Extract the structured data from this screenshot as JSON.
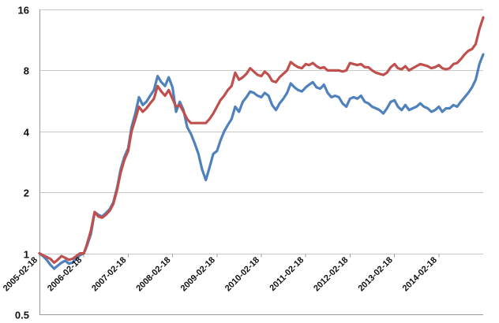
{
  "chart_data": {
    "type": "line",
    "title": "",
    "xlabel": "",
    "ylabel": "",
    "y_scale": "log2",
    "ylim": [
      0.5,
      16
    ],
    "y_ticks": [
      0.5,
      1,
      2,
      4,
      8,
      16
    ],
    "y_tick_labels": [
      "0.5",
      "1",
      "2",
      "4",
      "8",
      "16"
    ],
    "x_range": [
      "2005-02-18",
      "2015-02-18"
    ],
    "x_ticks": [
      "2005-02-18",
      "2006-02-18",
      "2007-02-18",
      "2008-02-18",
      "2009-02-18",
      "2010-02-18",
      "2011-02-18",
      "2012-02-18",
      "2013-02-18",
      "2014-02-18"
    ],
    "x_tick_label_rotation": -45,
    "grid": "horizontal",
    "legend": "none",
    "series": [
      {
        "color": "#4f81bd",
        "points": [
          [
            "2005-02-18",
            1.0
          ],
          [
            "2005-03-18",
            0.97
          ],
          [
            "2005-04-18",
            0.93
          ],
          [
            "2005-05-18",
            0.88
          ],
          [
            "2005-06-18",
            0.84
          ],
          [
            "2005-07-18",
            0.87
          ],
          [
            "2005-08-18",
            0.9
          ],
          [
            "2005-09-18",
            0.92
          ],
          [
            "2005-10-18",
            0.89
          ],
          [
            "2005-11-18",
            0.9
          ],
          [
            "2005-12-18",
            0.94
          ],
          [
            "2006-01-18",
            0.98
          ],
          [
            "2006-02-18",
            1.0
          ],
          [
            "2006-03-18",
            1.1
          ],
          [
            "2006-04-18",
            1.25
          ],
          [
            "2006-05-18",
            1.6
          ],
          [
            "2006-06-18",
            1.55
          ],
          [
            "2006-07-18",
            1.52
          ],
          [
            "2006-08-18",
            1.58
          ],
          [
            "2006-09-18",
            1.65
          ],
          [
            "2006-10-18",
            1.78
          ],
          [
            "2006-11-18",
            2.1
          ],
          [
            "2006-12-18",
            2.6
          ],
          [
            "2007-01-18",
            3.0
          ],
          [
            "2007-02-18",
            3.3
          ],
          [
            "2007-03-18",
            4.2
          ],
          [
            "2007-04-18",
            4.9
          ],
          [
            "2007-05-18",
            5.9
          ],
          [
            "2007-06-18",
            5.4
          ],
          [
            "2007-07-18",
            5.6
          ],
          [
            "2007-08-18",
            6.0
          ],
          [
            "2007-09-18",
            6.4
          ],
          [
            "2007-10-18",
            7.5
          ],
          [
            "2007-11-18",
            7.0
          ],
          [
            "2007-12-18",
            6.7
          ],
          [
            "2008-01-18",
            7.4
          ],
          [
            "2008-02-18",
            6.6
          ],
          [
            "2008-03-18",
            5.0
          ],
          [
            "2008-04-18",
            5.6
          ],
          [
            "2008-05-18",
            5.1
          ],
          [
            "2008-06-18",
            4.2
          ],
          [
            "2008-07-18",
            3.9
          ],
          [
            "2008-08-18",
            3.5
          ],
          [
            "2008-09-18",
            3.1
          ],
          [
            "2008-10-18",
            2.6
          ],
          [
            "2008-11-18",
            2.3
          ],
          [
            "2008-12-18",
            2.65
          ],
          [
            "2009-01-18",
            3.1
          ],
          [
            "2009-02-18",
            3.2
          ],
          [
            "2009-03-18",
            3.6
          ],
          [
            "2009-04-18",
            4.0
          ],
          [
            "2009-05-18",
            4.3
          ],
          [
            "2009-06-18",
            4.6
          ],
          [
            "2009-07-18",
            5.3
          ],
          [
            "2009-08-18",
            5.0
          ],
          [
            "2009-09-18",
            5.6
          ],
          [
            "2009-10-18",
            5.9
          ],
          [
            "2009-11-18",
            6.3
          ],
          [
            "2009-12-18",
            6.2
          ],
          [
            "2010-01-18",
            6.0
          ],
          [
            "2010-02-18",
            5.9
          ],
          [
            "2010-03-18",
            6.2
          ],
          [
            "2010-04-18",
            6.0
          ],
          [
            "2010-05-18",
            5.4
          ],
          [
            "2010-06-18",
            5.1
          ],
          [
            "2010-07-18",
            5.5
          ],
          [
            "2010-08-18",
            5.8
          ],
          [
            "2010-09-18",
            6.2
          ],
          [
            "2010-10-18",
            6.9
          ],
          [
            "2010-11-18",
            6.6
          ],
          [
            "2010-12-18",
            6.4
          ],
          [
            "2011-01-18",
            6.3
          ],
          [
            "2011-02-18",
            6.6
          ],
          [
            "2011-03-18",
            6.8
          ],
          [
            "2011-04-18",
            7.0
          ],
          [
            "2011-05-18",
            6.6
          ],
          [
            "2011-06-18",
            6.5
          ],
          [
            "2011-07-18",
            6.8
          ],
          [
            "2011-08-18",
            6.2
          ],
          [
            "2011-09-18",
            5.9
          ],
          [
            "2011-10-18",
            6.0
          ],
          [
            "2011-11-18",
            5.9
          ],
          [
            "2011-12-18",
            5.5
          ],
          [
            "2012-01-18",
            5.3
          ],
          [
            "2012-02-18",
            5.8
          ],
          [
            "2012-03-18",
            5.9
          ],
          [
            "2012-04-18",
            5.8
          ],
          [
            "2012-05-18",
            6.0
          ],
          [
            "2012-06-18",
            5.6
          ],
          [
            "2012-07-18",
            5.5
          ],
          [
            "2012-08-18",
            5.3
          ],
          [
            "2012-09-18",
            5.2
          ],
          [
            "2012-10-18",
            5.1
          ],
          [
            "2012-11-18",
            4.9
          ],
          [
            "2012-12-18",
            5.2
          ],
          [
            "2013-01-18",
            5.6
          ],
          [
            "2013-02-18",
            5.7
          ],
          [
            "2013-03-18",
            5.3
          ],
          [
            "2013-04-18",
            5.1
          ],
          [
            "2013-05-18",
            5.4
          ],
          [
            "2013-06-18",
            5.1
          ],
          [
            "2013-07-18",
            5.2
          ],
          [
            "2013-08-18",
            5.3
          ],
          [
            "2013-09-18",
            5.5
          ],
          [
            "2013-10-18",
            5.3
          ],
          [
            "2013-11-18",
            5.2
          ],
          [
            "2013-12-18",
            5.0
          ],
          [
            "2014-01-18",
            5.1
          ],
          [
            "2014-02-18",
            5.3
          ],
          [
            "2014-03-18",
            5.0
          ],
          [
            "2014-04-18",
            5.2
          ],
          [
            "2014-05-18",
            5.2
          ],
          [
            "2014-06-18",
            5.4
          ],
          [
            "2014-07-18",
            5.3
          ],
          [
            "2014-08-18",
            5.6
          ],
          [
            "2014-09-18",
            5.9
          ],
          [
            "2014-10-18",
            6.2
          ],
          [
            "2014-11-18",
            6.6
          ],
          [
            "2014-12-18",
            7.2
          ],
          [
            "2015-01-18",
            8.6
          ],
          [
            "2015-02-18",
            9.6
          ]
        ]
      },
      {
        "color": "#c0504d",
        "points": [
          [
            "2005-02-18",
            1.0
          ],
          [
            "2005-03-18",
            0.98
          ],
          [
            "2005-04-18",
            0.96
          ],
          [
            "2005-05-18",
            0.94
          ],
          [
            "2005-06-18",
            0.9
          ],
          [
            "2005-07-18",
            0.93
          ],
          [
            "2005-08-18",
            0.97
          ],
          [
            "2005-09-18",
            0.95
          ],
          [
            "2005-10-18",
            0.93
          ],
          [
            "2005-11-18",
            0.94
          ],
          [
            "2005-12-18",
            0.97
          ],
          [
            "2006-01-18",
            1.0
          ],
          [
            "2006-02-18",
            1.0
          ],
          [
            "2006-03-18",
            1.12
          ],
          [
            "2006-04-18",
            1.3
          ],
          [
            "2006-05-18",
            1.6
          ],
          [
            "2006-06-18",
            1.52
          ],
          [
            "2006-07-18",
            1.5
          ],
          [
            "2006-08-18",
            1.55
          ],
          [
            "2006-09-18",
            1.62
          ],
          [
            "2006-10-18",
            1.75
          ],
          [
            "2006-11-18",
            2.05
          ],
          [
            "2006-12-18",
            2.5
          ],
          [
            "2007-01-18",
            2.9
          ],
          [
            "2007-02-18",
            3.2
          ],
          [
            "2007-03-18",
            4.0
          ],
          [
            "2007-04-18",
            4.6
          ],
          [
            "2007-05-18",
            5.3
          ],
          [
            "2007-06-18",
            5.0
          ],
          [
            "2007-07-18",
            5.2
          ],
          [
            "2007-08-18",
            5.5
          ],
          [
            "2007-09-18",
            5.8
          ],
          [
            "2007-10-18",
            6.7
          ],
          [
            "2007-11-18",
            6.3
          ],
          [
            "2007-12-18",
            6.0
          ],
          [
            "2008-01-18",
            6.4
          ],
          [
            "2008-02-18",
            5.8
          ],
          [
            "2008-03-18",
            5.3
          ],
          [
            "2008-04-18",
            5.4
          ],
          [
            "2008-05-18",
            5.0
          ],
          [
            "2008-06-18",
            4.6
          ],
          [
            "2008-07-18",
            4.4
          ],
          [
            "2008-08-18",
            4.4
          ],
          [
            "2008-09-18",
            4.4
          ],
          [
            "2008-10-18",
            4.4
          ],
          [
            "2008-11-18",
            4.4
          ],
          [
            "2008-12-18",
            4.6
          ],
          [
            "2009-01-18",
            4.9
          ],
          [
            "2009-02-18",
            5.3
          ],
          [
            "2009-03-18",
            5.7
          ],
          [
            "2009-04-18",
            6.0
          ],
          [
            "2009-05-18",
            6.4
          ],
          [
            "2009-06-18",
            6.7
          ],
          [
            "2009-07-18",
            7.8
          ],
          [
            "2009-08-18",
            7.2
          ],
          [
            "2009-09-18",
            7.4
          ],
          [
            "2009-10-18",
            7.7
          ],
          [
            "2009-11-18",
            8.2
          ],
          [
            "2009-12-18",
            7.9
          ],
          [
            "2010-01-18",
            7.6
          ],
          [
            "2010-02-18",
            7.5
          ],
          [
            "2010-03-18",
            7.9
          ],
          [
            "2010-04-18",
            7.6
          ],
          [
            "2010-05-18",
            7.1
          ],
          [
            "2010-06-18",
            7.0
          ],
          [
            "2010-07-18",
            7.4
          ],
          [
            "2010-08-18",
            7.7
          ],
          [
            "2010-09-18",
            8.0
          ],
          [
            "2010-10-18",
            8.8
          ],
          [
            "2010-11-18",
            8.5
          ],
          [
            "2010-12-18",
            8.3
          ],
          [
            "2011-01-18",
            8.2
          ],
          [
            "2011-02-18",
            8.6
          ],
          [
            "2011-03-18",
            8.5
          ],
          [
            "2011-04-18",
            8.7
          ],
          [
            "2011-05-18",
            8.4
          ],
          [
            "2011-06-18",
            8.2
          ],
          [
            "2011-07-18",
            8.3
          ],
          [
            "2011-08-18",
            8.0
          ],
          [
            "2011-09-18",
            8.0
          ],
          [
            "2011-10-18",
            8.0
          ],
          [
            "2011-11-18",
            8.0
          ],
          [
            "2011-12-18",
            7.9
          ],
          [
            "2012-01-18",
            8.0
          ],
          [
            "2012-02-18",
            8.7
          ],
          [
            "2012-03-18",
            8.6
          ],
          [
            "2012-04-18",
            8.5
          ],
          [
            "2012-05-18",
            8.6
          ],
          [
            "2012-06-18",
            8.3
          ],
          [
            "2012-07-18",
            8.3
          ],
          [
            "2012-08-18",
            8.0
          ],
          [
            "2012-09-18",
            7.8
          ],
          [
            "2012-10-18",
            7.7
          ],
          [
            "2012-11-18",
            7.6
          ],
          [
            "2012-12-18",
            7.8
          ],
          [
            "2013-01-18",
            8.3
          ],
          [
            "2013-02-18",
            8.6
          ],
          [
            "2013-03-18",
            8.2
          ],
          [
            "2013-04-18",
            8.1
          ],
          [
            "2013-05-18",
            8.4
          ],
          [
            "2013-06-18",
            8.0
          ],
          [
            "2013-07-18",
            8.2
          ],
          [
            "2013-08-18",
            8.4
          ],
          [
            "2013-09-18",
            8.6
          ],
          [
            "2013-10-18",
            8.5
          ],
          [
            "2013-11-18",
            8.4
          ],
          [
            "2013-12-18",
            8.2
          ],
          [
            "2014-01-18",
            8.3
          ],
          [
            "2014-02-18",
            8.5
          ],
          [
            "2014-03-18",
            8.2
          ],
          [
            "2014-04-18",
            8.1
          ],
          [
            "2014-05-18",
            8.2
          ],
          [
            "2014-06-18",
            8.6
          ],
          [
            "2014-07-18",
            8.7
          ],
          [
            "2014-08-18",
            9.1
          ],
          [
            "2014-09-18",
            9.6
          ],
          [
            "2014-10-18",
            10.0
          ],
          [
            "2014-11-18",
            10.2
          ],
          [
            "2014-12-18",
            10.8
          ],
          [
            "2015-01-18",
            12.8
          ],
          [
            "2015-02-18",
            14.6
          ]
        ]
      }
    ]
  }
}
